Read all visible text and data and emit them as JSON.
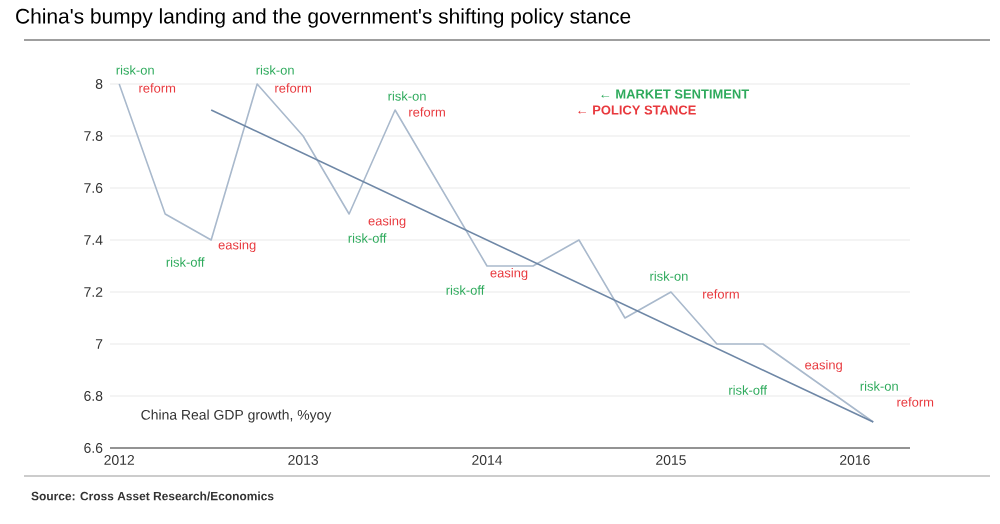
{
  "chart_data": {
    "type": "line",
    "title": "China's bumpy landing and the government's shifting policy stance",
    "series": [
      {
        "x": [
          2012,
          2012.25,
          2012.5,
          2012.75,
          2013,
          2013.25,
          2013.5,
          2014,
          2014.25,
          2014.5,
          2014.75,
          2015,
          2015.25,
          2015.5,
          2016.1
        ],
        "values": [
          8.0,
          7.5,
          7.4,
          8.0,
          7.8,
          7.5,
          7.9,
          7.3,
          7.3,
          7.4,
          7.1,
          7.2,
          7.0,
          7.0,
          6.7
        ],
        "color": "#a9b9cc"
      },
      {
        "x": [
          2012.5,
          2016.1
        ],
        "values": [
          7.9,
          6.7
        ],
        "color": "#6e87a6"
      }
    ],
    "xlim": [
      2011.95,
      2016.3
    ],
    "ylim": [
      6.6,
      8
    ],
    "xticks": [
      2012,
      2013,
      2014,
      2015,
      2016
    ],
    "yticks": [
      6.6,
      6.8,
      7,
      7.2,
      7.4,
      7.6,
      7.8,
      8
    ],
    "grid": "y",
    "marker": "none",
    "annotations": [
      {
        "text": "risk-on",
        "x": 2012,
        "y": 8.0
      },
      {
        "text": "reform",
        "x": 2012,
        "y": 8.0
      },
      {
        "text": "risk-off",
        "x": 2012.5,
        "y": 7.4
      },
      {
        "text": "easing",
        "x": 2012.5,
        "y": 7.4
      },
      {
        "text": "risk-on",
        "x": 2012.75,
        "y": 8.0
      },
      {
        "text": "reform",
        "x": 2012.75,
        "y": 8.0
      },
      {
        "text": "easing",
        "x": 2013.25,
        "y": 7.5
      },
      {
        "text": "risk-off",
        "x": 2013.25,
        "y": 7.5
      },
      {
        "text": "risk-on",
        "x": 2013.5,
        "y": 7.9
      },
      {
        "text": "reform",
        "x": 2013.5,
        "y": 7.9
      },
      {
        "text": "risk-off",
        "x": 2014,
        "y": 7.3
      },
      {
        "text": "easing",
        "x": 2014,
        "y": 7.3
      },
      {
        "text": "risk-on",
        "x": 2015,
        "y": 7.2
      },
      {
        "text": "reform",
        "x": 2015,
        "y": 7.2
      },
      {
        "text": "easing",
        "x": 2015.7,
        "y": 6.9
      },
      {
        "text": "risk-off",
        "x": 2015.7,
        "y": 6.9
      },
      {
        "text": "risk-on",
        "x": 2016.1,
        "y": 6.7
      },
      {
        "text": "reform",
        "x": 2016.1,
        "y": 6.7
      },
      "← **MARKET SENTIMENT**",
      "← **POLICY STANCE**",
      "China Real GDP growth, %yoy",
      "Source: Cross Asset Research/Economics"
    ]
  }
}
